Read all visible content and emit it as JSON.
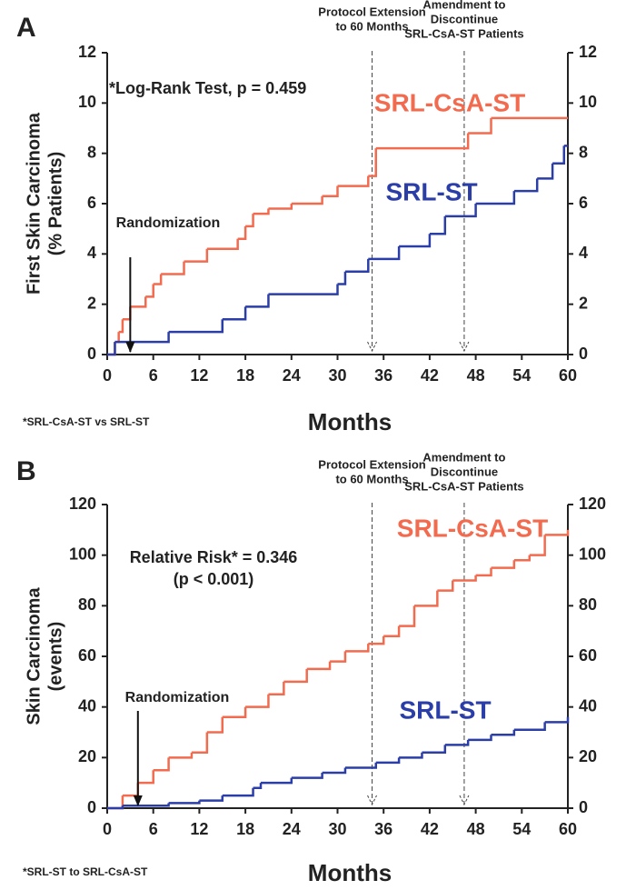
{
  "chart_data": [
    {
      "type": "step",
      "panel_label": "A",
      "y_label": [
        "First Skin Carcinoma",
        "(% Patients)"
      ],
      "x_label": "Months",
      "stat_note": [
        "*Log-Rank Test, p = 0.459"
      ],
      "footnote": "*SRL-CsA-ST vs SRL-ST",
      "randomization": {
        "label": "Randomization",
        "x": 3
      },
      "vlines": [
        {
          "x": 34.5,
          "label": [
            "Protocol Extension",
            "to 60 Months"
          ]
        },
        {
          "x": 46.5,
          "label": [
            "Amendment to",
            "Discontinue",
            "SRL-CsA-ST Patients"
          ]
        }
      ],
      "xlim": [
        0,
        60
      ],
      "xticks": [
        0,
        6,
        12,
        18,
        24,
        30,
        36,
        42,
        48,
        54,
        60
      ],
      "ylim": [
        0,
        12
      ],
      "yticks": [
        0,
        2,
        4,
        6,
        8,
        10,
        12
      ],
      "y2lim": [
        0,
        12
      ],
      "y2ticks": [
        0,
        2,
        4,
        6,
        8,
        10,
        12
      ],
      "series": [
        {
          "name": "SRL-CsA-ST",
          "color": "#f26b4f",
          "x": [
            0,
            1,
            1.5,
            2,
            3,
            5,
            6,
            7,
            10,
            13,
            17,
            18,
            19,
            21,
            24,
            28,
            30,
            34,
            35,
            47,
            50,
            60
          ],
          "values": [
            0,
            0.5,
            0.9,
            1.4,
            1.9,
            2.3,
            2.8,
            3.2,
            3.7,
            4.2,
            4.6,
            5.1,
            5.6,
            5.8,
            6.0,
            6.3,
            6.7,
            7.1,
            8.2,
            8.8,
            9.4,
            9.4
          ]
        },
        {
          "name": "SRL-ST",
          "color": "#2b3ea8",
          "x": [
            0,
            1,
            8,
            15,
            18,
            21,
            30,
            31,
            34,
            38,
            42,
            44,
            48,
            53,
            56,
            58,
            59.5,
            60
          ],
          "values": [
            0,
            0.5,
            0.9,
            1.4,
            1.9,
            2.4,
            2.8,
            3.3,
            3.8,
            4.3,
            4.8,
            5.5,
            6.0,
            6.5,
            7.0,
            7.6,
            8.3,
            8.3
          ]
        }
      ]
    },
    {
      "type": "step",
      "panel_label": "B",
      "y_label": [
        "Skin Carcinoma",
        "(events)"
      ],
      "x_label": "Months",
      "stat_note": [
        "Relative Risk* = 0.346",
        "(p < 0.001)"
      ],
      "footnote": "*SRL-ST to SRL-CsA-ST",
      "randomization": {
        "label": "Randomization",
        "x": 4
      },
      "vlines": [
        {
          "x": 34.5,
          "label": [
            "Protocol Extension",
            "to 60 Months"
          ]
        },
        {
          "x": 46.5,
          "label": [
            "Amendment to",
            "Discontinue",
            "SRL-CsA-ST Patients"
          ]
        }
      ],
      "xlim": [
        0,
        60
      ],
      "xticks": [
        0,
        6,
        12,
        18,
        24,
        30,
        36,
        42,
        48,
        54,
        60
      ],
      "ylim": [
        0,
        120
      ],
      "yticks": [
        0,
        20,
        40,
        60,
        80,
        100,
        120
      ],
      "y2lim": [
        0,
        120
      ],
      "y2ticks": [
        0,
        20,
        40,
        60,
        80,
        100,
        120
      ],
      "series": [
        {
          "name": "SRL-CsA-ST",
          "color": "#f26b4f",
          "x": [
            0,
            2,
            4,
            6,
            8,
            11,
            13,
            15,
            18,
            21,
            23,
            26,
            29,
            31,
            34,
            36,
            38,
            40,
            43,
            45,
            48,
            50,
            53,
            55,
            57,
            60
          ],
          "values": [
            0,
            5,
            10,
            15,
            20,
            22,
            30,
            36,
            40,
            45,
            50,
            55,
            58,
            62,
            65,
            68,
            72,
            80,
            86,
            90,
            92,
            95,
            98,
            100,
            108,
            110
          ]
        },
        {
          "name": "SRL-ST",
          "color": "#2b3ea8",
          "x": [
            0,
            2,
            8,
            12,
            15,
            19,
            20,
            24,
            28,
            31,
            35,
            38,
            41,
            44,
            47,
            50,
            53,
            57,
            60
          ],
          "values": [
            0,
            1,
            2,
            3,
            5,
            8,
            10,
            12,
            14,
            16,
            18,
            20,
            22,
            25,
            27,
            29,
            31,
            34,
            36
          ]
        }
      ]
    }
  ]
}
